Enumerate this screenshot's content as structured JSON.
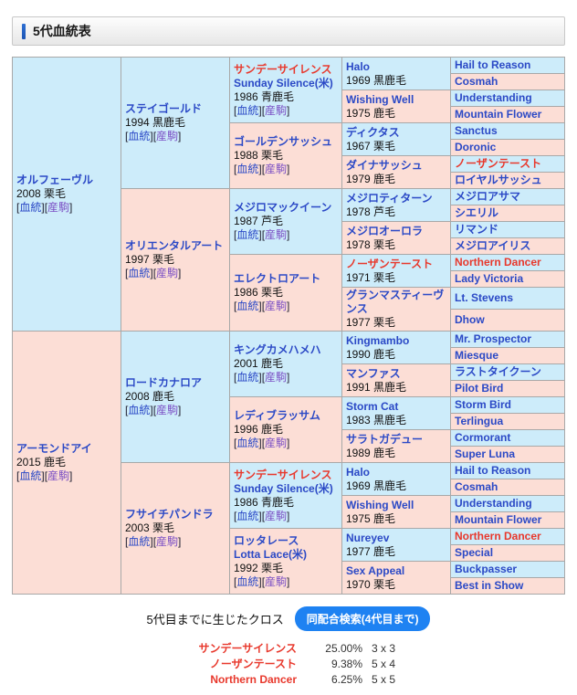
{
  "page": {
    "title": "5代血統表"
  },
  "colors": {
    "accent": "#2e6fd3",
    "male_bg": "#cdecfa",
    "female_bg": "#fcded6",
    "cross_red": "#e8382c",
    "link_blue": "#2b49c6",
    "link_purple": "#7a4ec4",
    "button_bg": "#1e82f2",
    "cell_border": "#a8a8a8"
  },
  "link_labels": {
    "blood": "血統",
    "offspring": "産駒"
  },
  "pedigree": {
    "generations": [
      [
        {
          "name": "オルフェーヴル",
          "year": "2008 栗毛",
          "sex": "m",
          "links": true
        },
        {
          "name": "アーモンドアイ",
          "year": "2015 鹿毛",
          "sex": "f",
          "links": true
        }
      ],
      [
        {
          "name": "ステイゴールド",
          "year": "1994 黒鹿毛",
          "sex": "m",
          "links": true
        },
        {
          "name": "オリエンタルアート",
          "year": "1997 栗毛",
          "sex": "f",
          "links": true
        },
        {
          "name": "ロードカナロア",
          "year": "2008 鹿毛",
          "sex": "m",
          "links": true
        },
        {
          "name": "フサイチパンドラ",
          "year": "2003 栗毛",
          "sex": "f",
          "links": true
        }
      ],
      [
        {
          "name": "サンデーサイレンス",
          "eng": "Sunday Silence(米)",
          "year": "1986 青鹿毛",
          "sex": "m",
          "cross": true,
          "links": true
        },
        {
          "name": "ゴールデンサッシュ",
          "year": "1988 栗毛",
          "sex": "f",
          "links": true
        },
        {
          "name": "メジロマックイーン",
          "year": "1987 芦毛",
          "sex": "m",
          "links": true
        },
        {
          "name": "エレクトロアート",
          "year": "1986 栗毛",
          "sex": "f",
          "links": true
        },
        {
          "name": "キングカメハメハ",
          "year": "2001 鹿毛",
          "sex": "m",
          "links": true
        },
        {
          "name": "レディブラッサム",
          "year": "1996 鹿毛",
          "sex": "f",
          "links": true
        },
        {
          "name": "サンデーサイレンス",
          "eng": "Sunday Silence(米)",
          "year": "1986 青鹿毛",
          "sex": "m",
          "cross": true,
          "links": true
        },
        {
          "name": "ロッタレース",
          "eng": "Lotta Lace(米)",
          "year": "1992 栗毛",
          "sex": "f",
          "links": true
        }
      ],
      [
        {
          "name": "Halo",
          "year": "1969 黒鹿毛",
          "sex": "m"
        },
        {
          "name": "Wishing Well",
          "year": "1975 鹿毛",
          "sex": "f"
        },
        {
          "name": "ディクタス",
          "year": "1967 栗毛",
          "sex": "m"
        },
        {
          "name": "ダイナサッシュ",
          "year": "1979 鹿毛",
          "sex": "f"
        },
        {
          "name": "メジロティターン",
          "year": "1978 芦毛",
          "sex": "m"
        },
        {
          "name": "メジロオーロラ",
          "year": "1978 栗毛",
          "sex": "f"
        },
        {
          "name": "ノーザンテースト",
          "year": "1971 栗毛",
          "sex": "m",
          "cross": true
        },
        {
          "name": "グランマスティーヴンス",
          "year": "1977 栗毛",
          "sex": "f"
        },
        {
          "name": "Kingmambo",
          "year": "1990 鹿毛",
          "sex": "m"
        },
        {
          "name": "マンファス",
          "year": "1991 黒鹿毛",
          "sex": "f"
        },
        {
          "name": "Storm Cat",
          "year": "1983 黒鹿毛",
          "sex": "m"
        },
        {
          "name": "サラトガデュー",
          "year": "1989 鹿毛",
          "sex": "f"
        },
        {
          "name": "Halo",
          "year": "1969 黒鹿毛",
          "sex": "m"
        },
        {
          "name": "Wishing Well",
          "year": "1975 鹿毛",
          "sex": "f"
        },
        {
          "name": "Nureyev",
          "year": "1977 鹿毛",
          "sex": "m"
        },
        {
          "name": "Sex Appeal",
          "year": "1970 栗毛",
          "sex": "f"
        }
      ],
      [
        {
          "name": "Hail to Reason",
          "sex": "m"
        },
        {
          "name": "Cosmah",
          "sex": "f"
        },
        {
          "name": "Understanding",
          "sex": "m"
        },
        {
          "name": "Mountain Flower",
          "sex": "f"
        },
        {
          "name": "Sanctus",
          "sex": "m"
        },
        {
          "name": "Doronic",
          "sex": "f"
        },
        {
          "name": "ノーザンテースト",
          "sex": "m",
          "cross": true
        },
        {
          "name": "ロイヤルサッシュ",
          "sex": "f"
        },
        {
          "name": "メジロアサマ",
          "sex": "m"
        },
        {
          "name": "シエリル",
          "sex": "f"
        },
        {
          "name": "リマンド",
          "sex": "m"
        },
        {
          "name": "メジロアイリス",
          "sex": "f"
        },
        {
          "name": "Northern Dancer",
          "sex": "m",
          "cross": true
        },
        {
          "name": "Lady Victoria",
          "sex": "f"
        },
        {
          "name": "Lt. Stevens",
          "sex": "m"
        },
        {
          "name": "Dhow",
          "sex": "f"
        },
        {
          "name": "Mr. Prospector",
          "sex": "m"
        },
        {
          "name": "Miesque",
          "sex": "f"
        },
        {
          "name": "ラストタイクーン",
          "sex": "m"
        },
        {
          "name": "Pilot Bird",
          "sex": "f"
        },
        {
          "name": "Storm Bird",
          "sex": "m"
        },
        {
          "name": "Terlingua",
          "sex": "f"
        },
        {
          "name": "Cormorant",
          "sex": "m"
        },
        {
          "name": "Super Luna",
          "sex": "f"
        },
        {
          "name": "Hail to Reason",
          "sex": "m"
        },
        {
          "name": "Cosmah",
          "sex": "f"
        },
        {
          "name": "Understanding",
          "sex": "m"
        },
        {
          "name": "Mountain Flower",
          "sex": "f"
        },
        {
          "name": "Northern Dancer",
          "sex": "m",
          "cross": true
        },
        {
          "name": "Special",
          "sex": "f"
        },
        {
          "name": "Buckpasser",
          "sex": "m"
        },
        {
          "name": "Best in Show",
          "sex": "f"
        }
      ]
    ]
  },
  "footer": {
    "cross_label": "5代目までに生じたクロス",
    "button_label": "同配合検索(4代目まで)",
    "crosses": [
      {
        "name": "サンデーサイレンス",
        "pct": "25.00%",
        "cross": "3 x 3"
      },
      {
        "name": "ノーザンテースト",
        "pct": "9.38%",
        "cross": "5 x 4"
      },
      {
        "name": "Northern Dancer",
        "pct": "6.25%",
        "cross": "5 x 5"
      }
    ]
  }
}
